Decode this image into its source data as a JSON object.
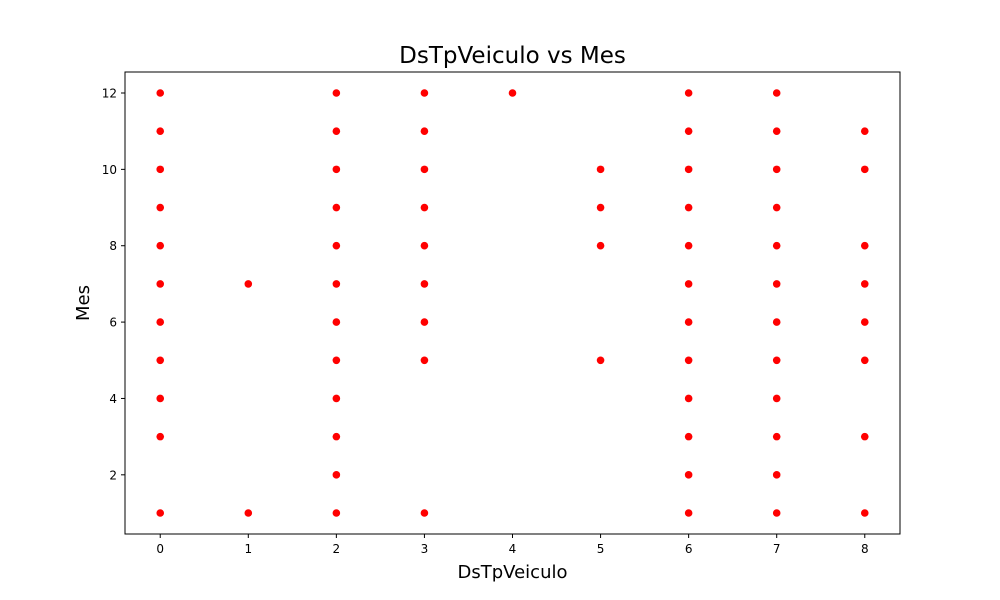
{
  "chart_data": {
    "type": "scatter",
    "title": "DsTpVeiculo vs Mes",
    "xlabel": "DsTpVeiculo",
    "ylabel": "Mes",
    "xlim": [
      -0.4,
      8.4
    ],
    "ylim": [
      0.45,
      12.55
    ],
    "xticks": [
      0,
      1,
      2,
      3,
      4,
      5,
      6,
      7,
      8
    ],
    "yticks": [
      2,
      4,
      6,
      8,
      10,
      12
    ],
    "grid": false,
    "marker_color": "#ff0000",
    "points": [
      {
        "x": 0,
        "y": 1
      },
      {
        "x": 0,
        "y": 3
      },
      {
        "x": 0,
        "y": 4
      },
      {
        "x": 0,
        "y": 5
      },
      {
        "x": 0,
        "y": 6
      },
      {
        "x": 0,
        "y": 7
      },
      {
        "x": 0,
        "y": 8
      },
      {
        "x": 0,
        "y": 9
      },
      {
        "x": 0,
        "y": 10
      },
      {
        "x": 0,
        "y": 11
      },
      {
        "x": 0,
        "y": 12
      },
      {
        "x": 1,
        "y": 1
      },
      {
        "x": 1,
        "y": 7
      },
      {
        "x": 2,
        "y": 1
      },
      {
        "x": 2,
        "y": 2
      },
      {
        "x": 2,
        "y": 3
      },
      {
        "x": 2,
        "y": 4
      },
      {
        "x": 2,
        "y": 5
      },
      {
        "x": 2,
        "y": 6
      },
      {
        "x": 2,
        "y": 7
      },
      {
        "x": 2,
        "y": 8
      },
      {
        "x": 2,
        "y": 9
      },
      {
        "x": 2,
        "y": 10
      },
      {
        "x": 2,
        "y": 11
      },
      {
        "x": 2,
        "y": 12
      },
      {
        "x": 3,
        "y": 1
      },
      {
        "x": 3,
        "y": 5
      },
      {
        "x": 3,
        "y": 6
      },
      {
        "x": 3,
        "y": 7
      },
      {
        "x": 3,
        "y": 8
      },
      {
        "x": 3,
        "y": 9
      },
      {
        "x": 3,
        "y": 10
      },
      {
        "x": 3,
        "y": 11
      },
      {
        "x": 3,
        "y": 12
      },
      {
        "x": 4,
        "y": 12
      },
      {
        "x": 5,
        "y": 5
      },
      {
        "x": 5,
        "y": 8
      },
      {
        "x": 5,
        "y": 9
      },
      {
        "x": 5,
        "y": 10
      },
      {
        "x": 6,
        "y": 1
      },
      {
        "x": 6,
        "y": 2
      },
      {
        "x": 6,
        "y": 3
      },
      {
        "x": 6,
        "y": 4
      },
      {
        "x": 6,
        "y": 5
      },
      {
        "x": 6,
        "y": 6
      },
      {
        "x": 6,
        "y": 7
      },
      {
        "x": 6,
        "y": 8
      },
      {
        "x": 6,
        "y": 9
      },
      {
        "x": 6,
        "y": 10
      },
      {
        "x": 6,
        "y": 11
      },
      {
        "x": 6,
        "y": 12
      },
      {
        "x": 7,
        "y": 1
      },
      {
        "x": 7,
        "y": 2
      },
      {
        "x": 7,
        "y": 3
      },
      {
        "x": 7,
        "y": 4
      },
      {
        "x": 7,
        "y": 5
      },
      {
        "x": 7,
        "y": 6
      },
      {
        "x": 7,
        "y": 7
      },
      {
        "x": 7,
        "y": 8
      },
      {
        "x": 7,
        "y": 9
      },
      {
        "x": 7,
        "y": 10
      },
      {
        "x": 7,
        "y": 11
      },
      {
        "x": 7,
        "y": 12
      },
      {
        "x": 8,
        "y": 1
      },
      {
        "x": 8,
        "y": 3
      },
      {
        "x": 8,
        "y": 5
      },
      {
        "x": 8,
        "y": 6
      },
      {
        "x": 8,
        "y": 7
      },
      {
        "x": 8,
        "y": 8
      },
      {
        "x": 8,
        "y": 10
      },
      {
        "x": 8,
        "y": 11
      }
    ]
  }
}
